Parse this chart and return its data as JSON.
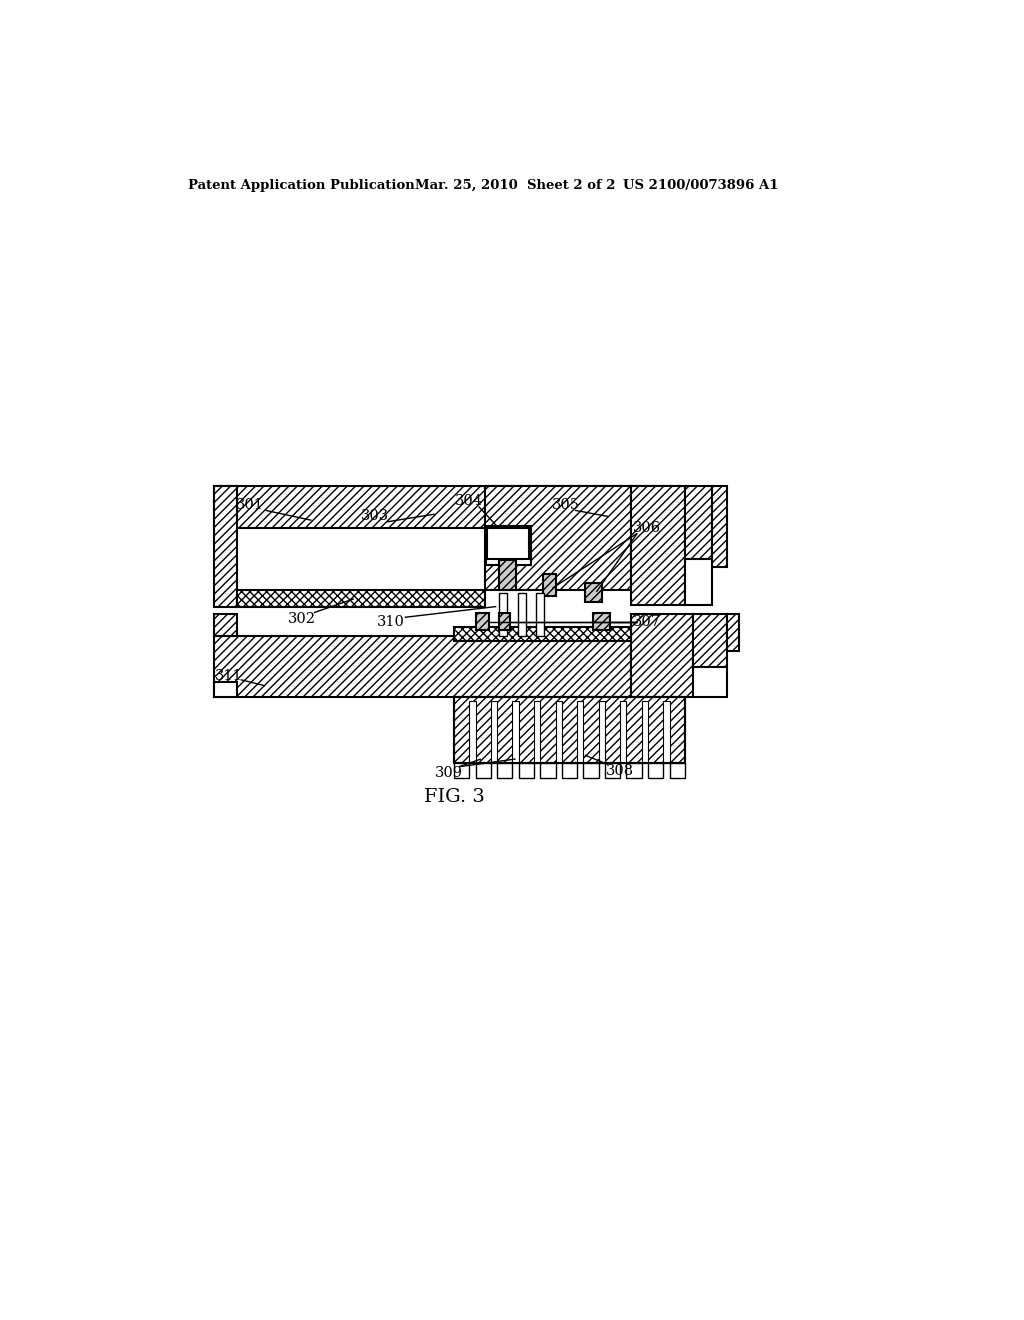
{
  "header_left": "Patent Application Publication",
  "header_mid": "Mar. 25, 2010  Sheet 2 of 2",
  "header_right": "US 2100/0073896 A1",
  "fig_label": "FIG. 3",
  "background": "#ffffff"
}
